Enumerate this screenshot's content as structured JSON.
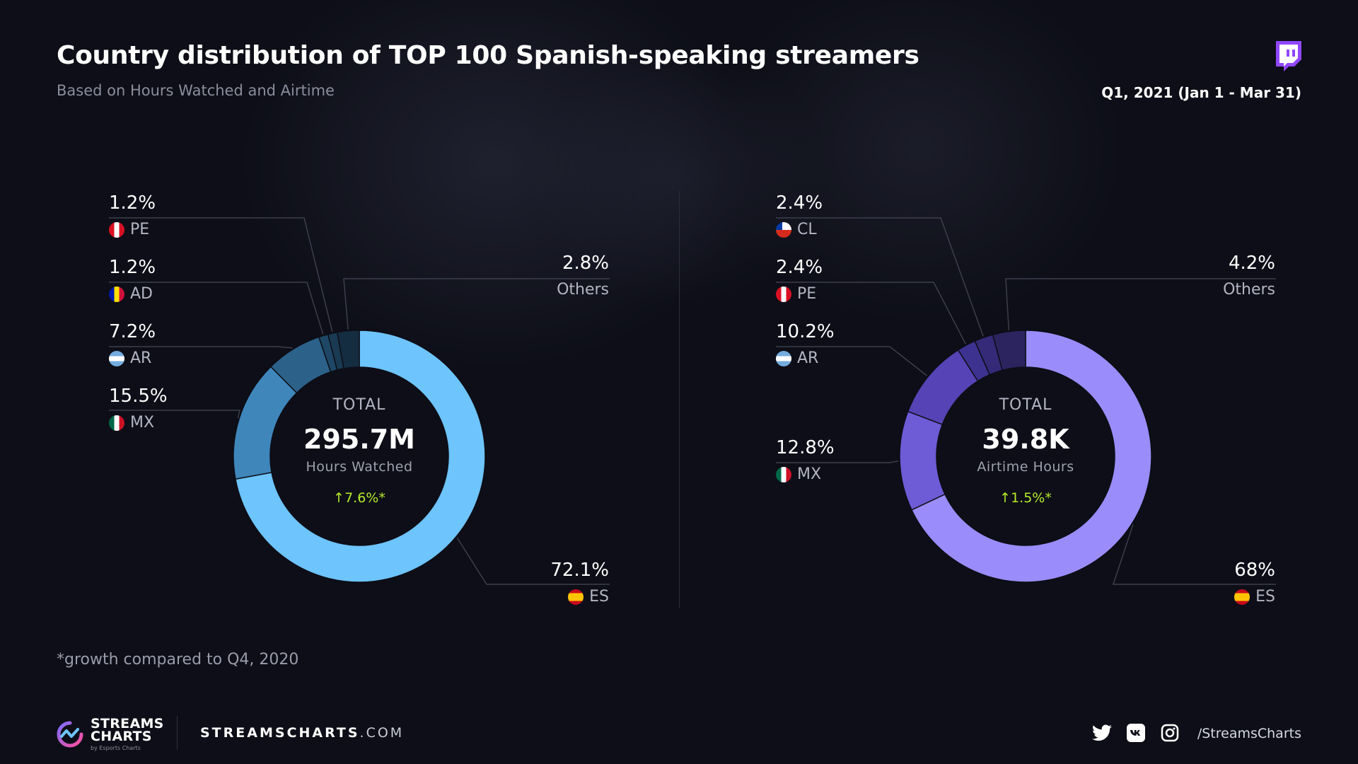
{
  "header": {
    "title": "Country distribution of TOP 100 Spanish-speaking streamers",
    "subtitle": "Based on Hours Watched and Airtime",
    "period": "Q1, 2021 (Jan 1 - Mar 31)"
  },
  "chart_data": [
    {
      "type": "pie",
      "variant": "donut",
      "center": {
        "label": "TOTAL",
        "value": "295.7M",
        "unit": "Hours Watched",
        "growth": "7.6%*"
      },
      "slices": [
        {
          "label": "ES",
          "value": 72.1,
          "value_label": "72.1%",
          "color": "#6ec4fd"
        },
        {
          "label": "MX",
          "value": 15.5,
          "value_label": "15.5%",
          "color": "#3f86bb"
        },
        {
          "label": "AR",
          "value": 7.2,
          "value_label": "7.2%",
          "color": "#2c618a"
        },
        {
          "label": "AD",
          "value": 1.2,
          "value_label": "1.2%",
          "color": "#1e4766"
        },
        {
          "label": "PE",
          "value": 1.2,
          "value_label": "1.2%",
          "color": "#1a3a53"
        },
        {
          "label": "Others",
          "value": 2.8,
          "value_label": "2.8%",
          "color": "#152d40"
        }
      ]
    },
    {
      "type": "pie",
      "variant": "donut",
      "center": {
        "label": "TOTAL",
        "value": "39.8K",
        "unit": "Airtime Hours",
        "growth": "1.5%*"
      },
      "slices": [
        {
          "label": "ES",
          "value": 68,
          "value_label": "68%",
          "color": "#9b8cfb"
        },
        {
          "label": "MX",
          "value": 12.8,
          "value_label": "12.8%",
          "color": "#6e5bd6"
        },
        {
          "label": "AR",
          "value": 10.2,
          "value_label": "10.2%",
          "color": "#5643b5"
        },
        {
          "label": "PE",
          "value": 2.4,
          "value_label": "2.4%",
          "color": "#3e3290"
        },
        {
          "label": "CL",
          "value": 2.4,
          "value_label": "2.4%",
          "color": "#342a78"
        },
        {
          "label": "Others",
          "value": 4.2,
          "value_label": "4.2%",
          "color": "#2b245f"
        }
      ]
    }
  ],
  "footnote": "*growth compared to Q4, 2020",
  "footer": {
    "logo_line1": "STREAMS",
    "logo_line2": "CHARTS",
    "logo_sub": "by Esports Charts",
    "site_main": "STREAMSCHARTS",
    "site_tld": ".COM",
    "handle": "/StreamsCharts"
  },
  "icons": [
    "twitch-icon",
    "twitter-icon",
    "vk-icon",
    "instagram-icon",
    "streamscharts-logo-icon"
  ]
}
